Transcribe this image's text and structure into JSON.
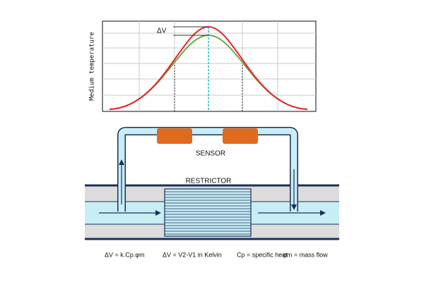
{
  "graph": {
    "delta_label": "ΔV",
    "y_axis_label": "Medium temperature"
  },
  "diagram": {
    "sensor_label": "SENSOR",
    "restrictor_label": "RESTRICTOR"
  },
  "legend": [
    "ΔV = k.Cp.φm",
    "ΔV = V2-V1 in Kelvin",
    "Cp = specific heat",
    "φm = mass flow"
  ]
}
